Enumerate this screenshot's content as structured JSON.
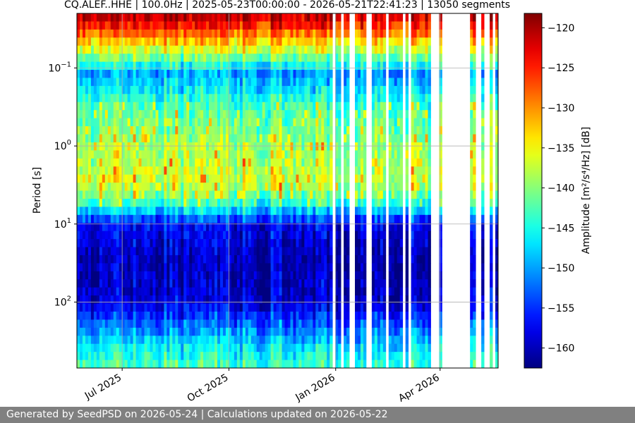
{
  "chart_data": {
    "type": "heatmap",
    "title": "CQ.ALEF..HHE | 100.0Hz | 2025-05-23T00:00:00 - 2026-05-21T22:41:23 | 13050 segments",
    "xlabel": "",
    "ylabel": "Period [s]",
    "x_range": [
      "2025-05-23",
      "2026-05-21"
    ],
    "x_ticks": [
      {
        "date": "2025-07-01",
        "label": "Jul 2025"
      },
      {
        "date": "2025-10-01",
        "label": "Oct 2025"
      },
      {
        "date": "2026-01-01",
        "label": "Jan 2026"
      },
      {
        "date": "2026-04-01",
        "label": "Apr 2026"
      }
    ],
    "y_scale": "log",
    "y_inverted": true,
    "y_range": [
      0.02,
      700
    ],
    "y_ticks": [
      {
        "value": 0.1,
        "base": "10",
        "exp": "−1"
      },
      {
        "value": 1,
        "base": "10",
        "exp": "0"
      },
      {
        "value": 10,
        "base": "10",
        "exp": "1"
      },
      {
        "value": 100,
        "base": "10",
        "exp": "2"
      }
    ],
    "grid": true,
    "colormap": "jet",
    "colorbar": {
      "label": "Amplitude [m²/s⁴/Hz] [dB]",
      "range": [
        -162.5,
        -118.2
      ],
      "ticks": [
        -120,
        -125,
        -130,
        -135,
        -140,
        -145,
        -150,
        -155,
        -160
      ],
      "tick_labels": [
        "−120",
        "−125",
        "−130",
        "−135",
        "−140",
        "−145",
        "−150",
        "−155",
        "−160"
      ]
    },
    "data_gaps": [
      [
        "2026-03-25",
        "2026-03-31"
      ],
      [
        "2026-04-02",
        "2026-04-28"
      ]
    ],
    "period_profile_db": [
      {
        "period": 0.02,
        "value": -120
      },
      {
        "period": 0.03,
        "value": -125
      },
      {
        "period": 0.05,
        "value": -134
      },
      {
        "period": 0.08,
        "value": -142
      },
      {
        "period": 0.12,
        "value": -150
      },
      {
        "period": 0.3,
        "value": -143
      },
      {
        "period": 1,
        "value": -139
      },
      {
        "period": 3,
        "value": -137
      },
      {
        "period": 6,
        "value": -145
      },
      {
        "period": 10,
        "value": -157
      },
      {
        "period": 30,
        "value": -160
      },
      {
        "period": 100,
        "value": -159
      },
      {
        "period": 200,
        "value": -152
      },
      {
        "period": 400,
        "value": -146
      },
      {
        "period": 700,
        "value": -143
      }
    ]
  },
  "footer": {
    "text": "Generated by SeedPSD on 2026-05-24 | Calculations updated on 2026-05-22"
  }
}
